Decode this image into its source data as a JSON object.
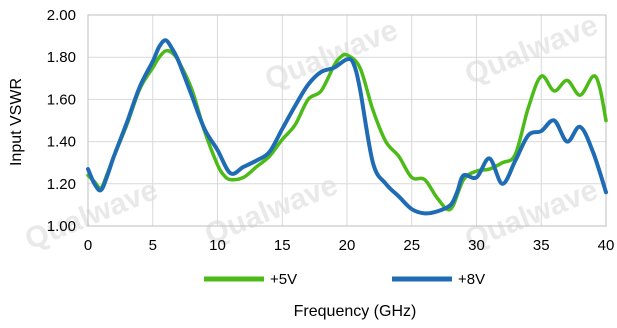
{
  "chart_data": {
    "type": "line",
    "title": "",
    "xlabel": "Frequency (GHz)",
    "ylabel": "Input VSWR",
    "xlim": [
      0,
      40
    ],
    "ylim": [
      1.0,
      2.0
    ],
    "xticks": [
      "0",
      "5",
      "10",
      "15",
      "20",
      "25",
      "30",
      "35",
      "40"
    ],
    "yticks": [
      "1.00",
      "1.20",
      "1.40",
      "1.60",
      "1.80",
      "2.00"
    ],
    "grid": true,
    "legend_position": "bottom",
    "series": [
      {
        "name": "+5V",
        "color": "#4cbb17",
        "x": [
          0,
          0.5,
          1,
          1.5,
          2,
          3,
          4,
          5,
          5.5,
          6,
          6.5,
          7,
          8,
          9,
          10,
          10.5,
          11,
          12,
          13,
          14,
          15,
          16,
          17,
          18,
          19,
          19.5,
          20,
          21,
          22,
          23,
          24,
          25,
          26,
          27,
          28,
          29,
          30,
          31,
          32,
          33,
          34,
          35,
          36,
          37,
          38,
          39,
          39.5,
          40
        ],
        "values": [
          1.24,
          1.21,
          1.18,
          1.25,
          1.33,
          1.48,
          1.65,
          1.75,
          1.8,
          1.83,
          1.82,
          1.78,
          1.65,
          1.45,
          1.29,
          1.24,
          1.22,
          1.23,
          1.28,
          1.33,
          1.41,
          1.48,
          1.6,
          1.64,
          1.76,
          1.8,
          1.81,
          1.75,
          1.55,
          1.4,
          1.33,
          1.23,
          1.22,
          1.13,
          1.08,
          1.22,
          1.26,
          1.27,
          1.3,
          1.34,
          1.56,
          1.71,
          1.64,
          1.69,
          1.62,
          1.71,
          1.66,
          1.5
        ]
      },
      {
        "name": "+8V",
        "color": "#1f6cb5",
        "x": [
          0,
          0.5,
          1,
          1.5,
          2,
          3,
          4,
          5,
          5.5,
          6,
          6.5,
          7,
          8,
          9,
          10,
          11,
          12,
          13,
          14,
          15,
          16,
          17,
          18,
          19,
          20,
          20.5,
          21,
          22,
          23,
          24,
          25,
          26,
          27,
          28,
          28.5,
          29,
          30,
          31,
          32,
          33,
          34,
          35,
          36,
          37,
          38,
          39,
          40
        ],
        "values": [
          1.27,
          1.2,
          1.17,
          1.24,
          1.33,
          1.49,
          1.66,
          1.78,
          1.85,
          1.88,
          1.84,
          1.78,
          1.62,
          1.46,
          1.36,
          1.25,
          1.28,
          1.31,
          1.35,
          1.46,
          1.57,
          1.67,
          1.73,
          1.75,
          1.79,
          1.77,
          1.65,
          1.3,
          1.2,
          1.14,
          1.08,
          1.06,
          1.07,
          1.1,
          1.16,
          1.24,
          1.23,
          1.32,
          1.2,
          1.31,
          1.43,
          1.45,
          1.5,
          1.4,
          1.47,
          1.35,
          1.16
        ]
      }
    ]
  },
  "watermark": {
    "text": "Qualwave"
  }
}
